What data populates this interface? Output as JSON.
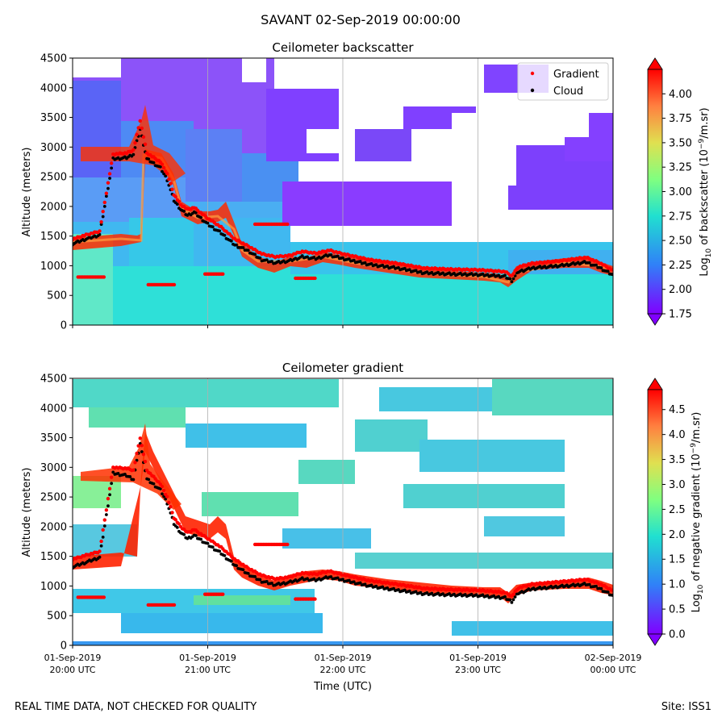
{
  "suptitle": "SAVANT 02-Sep-2019 00:00:00",
  "footer": {
    "note": "REAL TIME DATA, NOT CHECKED FOR QUALITY",
    "site": "Site: ISS1"
  },
  "time_axis": {
    "label": "Time (UTC)",
    "tick_hours": [
      0,
      1,
      2,
      3,
      4
    ],
    "ticks": [
      {
        "date": "01-Sep-2019",
        "time": "20:00 UTC"
      },
      {
        "date": "01-Sep-2019",
        "time": "21:00 UTC"
      },
      {
        "date": "01-Sep-2019",
        "time": "22:00 UTC"
      },
      {
        "date": "01-Sep-2019",
        "time": "23:00 UTC"
      },
      {
        "date": "02-Sep-2019",
        "time": "00:00 UTC"
      }
    ]
  },
  "chart_data": [
    {
      "type": "heatmap",
      "title": "Ceilometer backscatter",
      "xlabel": "",
      "ylabel": "Altitude (meters)",
      "xlim_hours": [
        0,
        4
      ],
      "ylim": [
        0,
        4500
      ],
      "yticks": [
        0,
        500,
        1000,
        1500,
        2000,
        2500,
        3000,
        3500,
        4000,
        4500
      ],
      "grid": "vertical",
      "colorbar": {
        "label_main": "Log",
        "label_sub": "10",
        "label_rest": " of backscatter (10",
        "label_sup": "−9",
        "label_end": "/m.sr)",
        "range": [
          1.75,
          4.25
        ],
        "ticks": [
          "1.75",
          "2.00",
          "2.25",
          "2.50",
          "2.75",
          "3.00",
          "3.25",
          "3.50",
          "3.75",
          "4.00"
        ],
        "tick_values": [
          1.75,
          2.0,
          2.25,
          2.5,
          2.75,
          3.0,
          3.25,
          3.5,
          3.75,
          4.0
        ],
        "colormap": "rainbow"
      },
      "legend": {
        "position": "top-right",
        "entries": [
          {
            "label": "Gradient",
            "color": "#ff0000"
          },
          {
            "label": "Cloud",
            "color": "#000000"
          }
        ]
      },
      "series": [
        {
          "name": "Cloud",
          "x_hours": [
            0.0,
            0.1,
            0.2,
            0.3,
            0.4,
            0.45,
            0.5,
            0.55,
            0.65,
            0.7,
            0.75,
            0.8,
            0.85,
            0.9,
            1.0,
            1.1,
            1.2,
            1.3,
            1.4,
            1.5,
            1.6,
            1.7,
            1.8,
            1.9,
            2.0,
            2.2,
            2.4,
            2.6,
            2.8,
            3.0,
            3.2,
            3.25,
            3.3,
            3.4,
            3.6,
            3.8,
            3.9,
            4.0
          ],
          "altitude_m": [
            1370,
            1450,
            1520,
            2800,
            2820,
            2880,
            3300,
            2800,
            2650,
            2450,
            2100,
            1950,
            1850,
            1900,
            1700,
            1550,
            1350,
            1250,
            1100,
            1050,
            1080,
            1150,
            1120,
            1180,
            1120,
            1020,
            960,
            880,
            860,
            850,
            820,
            750,
            900,
            960,
            1000,
            1060,
            970,
            840
          ]
        },
        {
          "name": "Gradient",
          "x_hours": [
            0.0,
            0.1,
            0.2,
            0.3,
            0.4,
            0.45,
            0.5,
            0.55,
            0.65,
            0.7,
            0.75,
            0.8,
            0.85,
            0.9,
            1.0,
            1.1,
            1.2,
            1.3,
            1.4,
            1.5,
            1.6,
            1.7,
            1.8,
            1.9,
            2.0,
            2.2,
            2.4,
            2.6,
            2.8,
            3.0,
            3.2,
            3.25,
            3.3,
            3.4,
            3.6,
            3.8,
            3.9,
            4.0
          ],
          "altitude_m": [
            1450,
            1520,
            1580,
            2880,
            2900,
            2950,
            3450,
            2900,
            2750,
            2550,
            2200,
            2030,
            1950,
            1980,
            1800,
            1650,
            1450,
            1330,
            1200,
            1150,
            1170,
            1240,
            1210,
            1260,
            1200,
            1100,
            1040,
            960,
            940,
            930,
            900,
            830,
            980,
            1040,
            1080,
            1140,
            1050,
            920
          ]
        },
        {
          "name": "Gradient (lower segments)",
          "segments": [
            {
              "x_hours": [
                0.04,
                0.24
              ],
              "altitude_m": 810
            },
            {
              "x_hours": [
                0.56,
                0.76
              ],
              "altitude_m": 680
            },
            {
              "x_hours": [
                0.98,
                1.12
              ],
              "altitude_m": 860
            },
            {
              "x_hours": [
                1.35,
                1.6
              ],
              "altitude_m": 1700
            },
            {
              "x_hours": [
                1.65,
                1.8
              ],
              "altitude_m": 790
            }
          ]
        }
      ]
    },
    {
      "type": "heatmap",
      "title": "Ceilometer gradient",
      "xlabel": "Time (UTC)",
      "ylabel": "Altitude (meters)",
      "xlim_hours": [
        0,
        4
      ],
      "ylim": [
        0,
        4500
      ],
      "yticks": [
        0,
        500,
        1000,
        1500,
        2000,
        2500,
        3000,
        3500,
        4000,
        4500
      ],
      "grid": "vertical",
      "colorbar": {
        "label_main": "Log",
        "label_sub": "10",
        "label_rest": " of negative gradient (10",
        "label_sup": "−9",
        "label_end": "/m.sr)",
        "range": [
          0.0,
          4.9
        ],
        "ticks": [
          "0.0",
          "0.5",
          "1.0",
          "1.5",
          "2.0",
          "2.5",
          "3.0",
          "3.5",
          "4.0",
          "4.5"
        ],
        "tick_values": [
          0.0,
          0.5,
          1.0,
          1.5,
          2.0,
          2.5,
          3.0,
          3.5,
          4.0,
          4.5
        ],
        "colormap": "rainbow"
      },
      "series": [
        {
          "name": "Cloud",
          "x_hours": [
            0.0,
            0.1,
            0.2,
            0.3,
            0.4,
            0.45,
            0.5,
            0.55,
            0.65,
            0.7,
            0.75,
            0.8,
            0.85,
            0.9,
            1.0,
            1.1,
            1.2,
            1.3,
            1.4,
            1.5,
            1.6,
            1.7,
            1.8,
            1.9,
            2.0,
            2.2,
            2.4,
            2.6,
            2.8,
            3.0,
            3.2,
            3.25,
            3.3,
            3.4,
            3.6,
            3.8,
            3.9,
            4.0
          ],
          "altitude_m": [
            1320,
            1400,
            1480,
            2900,
            2860,
            2800,
            3400,
            2800,
            2620,
            2400,
            2050,
            1900,
            1800,
            1850,
            1700,
            1550,
            1350,
            1200,
            1080,
            1020,
            1060,
            1120,
            1100,
            1150,
            1100,
            1000,
            930,
            870,
            850,
            840,
            800,
            740,
            880,
            950,
            990,
            1030,
            960,
            830
          ]
        },
        {
          "name": "Gradient",
          "x_hours": [
            0.0,
            0.1,
            0.2,
            0.3,
            0.4,
            0.45,
            0.5,
            0.55,
            0.65,
            0.7,
            0.75,
            0.8,
            0.85,
            0.9,
            1.0,
            1.1,
            1.2,
            1.3,
            1.4,
            1.5,
            1.6,
            1.7,
            1.8,
            1.9,
            2.0,
            2.2,
            2.4,
            2.6,
            2.8,
            3.0,
            3.2,
            3.25,
            3.3,
            3.4,
            3.6,
            3.8,
            3.9,
            4.0
          ],
          "altitude_m": [
            1450,
            1520,
            1580,
            3000,
            2980,
            2950,
            3500,
            2950,
            2720,
            2500,
            2150,
            2000,
            1900,
            1950,
            1800,
            1650,
            1450,
            1300,
            1180,
            1120,
            1150,
            1220,
            1200,
            1250,
            1190,
            1090,
            1030,
            960,
            940,
            930,
            890,
            830,
            970,
            1030,
            1070,
            1110,
            1040,
            920
          ]
        },
        {
          "name": "Gradient (lower segments)",
          "segments": [
            {
              "x_hours": [
                0.04,
                0.24
              ],
              "altitude_m": 810
            },
            {
              "x_hours": [
                0.56,
                0.76
              ],
              "altitude_m": 680
            },
            {
              "x_hours": [
                0.98,
                1.12
              ],
              "altitude_m": 860
            },
            {
              "x_hours": [
                1.35,
                1.6
              ],
              "altitude_m": 1700
            },
            {
              "x_hours": [
                1.65,
                1.8
              ],
              "altitude_m": 780
            }
          ]
        }
      ]
    }
  ]
}
